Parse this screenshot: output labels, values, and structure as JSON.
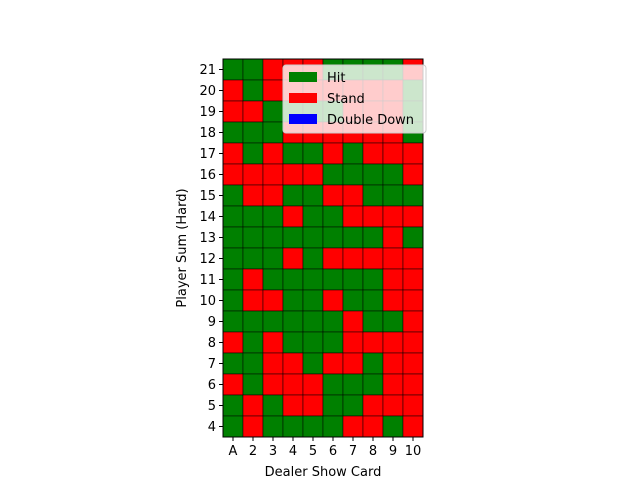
{
  "chart_data": {
    "type": "heatmap",
    "xlabel": "Dealer Show Card",
    "ylabel": "Player Sum (Hard)",
    "x_categories": [
      "A",
      "2",
      "3",
      "4",
      "5",
      "6",
      "7",
      "8",
      "9",
      "10"
    ],
    "y_categories": [
      "4",
      "5",
      "6",
      "7",
      "8",
      "9",
      "10",
      "11",
      "12",
      "13",
      "14",
      "15",
      "16",
      "17",
      "18",
      "19",
      "20",
      "21"
    ],
    "legend": {
      "placement": "top-right",
      "entries": [
        {
          "label": "Hit",
          "color": "#008000"
        },
        {
          "label": "Stand",
          "color": "#ff0000"
        },
        {
          "label": "Double Down",
          "color": "#0000ff"
        }
      ]
    },
    "grid": false,
    "actions_top_to_bottom": {
      "21": [
        "H",
        "H",
        "S",
        "S",
        "S",
        "H",
        "H",
        "H",
        "H",
        "S"
      ],
      "20": [
        "S",
        "H",
        "S",
        "S",
        "S",
        "S",
        "S",
        "S",
        "S",
        "H"
      ],
      "19": [
        "S",
        "S",
        "H",
        "H",
        "H",
        "H",
        "S",
        "S",
        "S",
        "H"
      ],
      "18": [
        "H",
        "H",
        "H",
        "S",
        "S",
        "S",
        "S",
        "S",
        "S",
        "H"
      ],
      "17": [
        "S",
        "H",
        "S",
        "H",
        "H",
        "S",
        "H",
        "S",
        "S",
        "S"
      ],
      "16": [
        "S",
        "S",
        "S",
        "S",
        "S",
        "H",
        "H",
        "H",
        "H",
        "S"
      ],
      "15": [
        "H",
        "S",
        "S",
        "H",
        "H",
        "S",
        "S",
        "H",
        "H",
        "H"
      ],
      "14": [
        "H",
        "H",
        "H",
        "S",
        "H",
        "H",
        "S",
        "S",
        "S",
        "S"
      ],
      "13": [
        "H",
        "H",
        "H",
        "H",
        "H",
        "H",
        "H",
        "H",
        "S",
        "H"
      ],
      "12": [
        "H",
        "H",
        "H",
        "S",
        "H",
        "S",
        "S",
        "S",
        "S",
        "S"
      ],
      "11": [
        "H",
        "S",
        "H",
        "H",
        "H",
        "H",
        "H",
        "H",
        "S",
        "S"
      ],
      "10": [
        "H",
        "S",
        "S",
        "H",
        "H",
        "S",
        "H",
        "H",
        "S",
        "S"
      ],
      "9": [
        "H",
        "H",
        "H",
        "H",
        "H",
        "H",
        "S",
        "H",
        "H",
        "S"
      ],
      "8": [
        "S",
        "H",
        "S",
        "H",
        "H",
        "H",
        "S",
        "S",
        "S",
        "S"
      ],
      "7": [
        "H",
        "H",
        "S",
        "S",
        "H",
        "S",
        "S",
        "H",
        "S",
        "S"
      ],
      "6": [
        "S",
        "H",
        "S",
        "S",
        "S",
        "H",
        "H",
        "H",
        "S",
        "S"
      ],
      "5": [
        "H",
        "S",
        "H",
        "S",
        "S",
        "H",
        "H",
        "S",
        "S",
        "S"
      ],
      "4": [
        "H",
        "S",
        "H",
        "H",
        "H",
        "H",
        "S",
        "S",
        "H",
        "S"
      ]
    },
    "action_codes": {
      "H": "Hit",
      "S": "Stand",
      "D": "Double Down"
    }
  }
}
